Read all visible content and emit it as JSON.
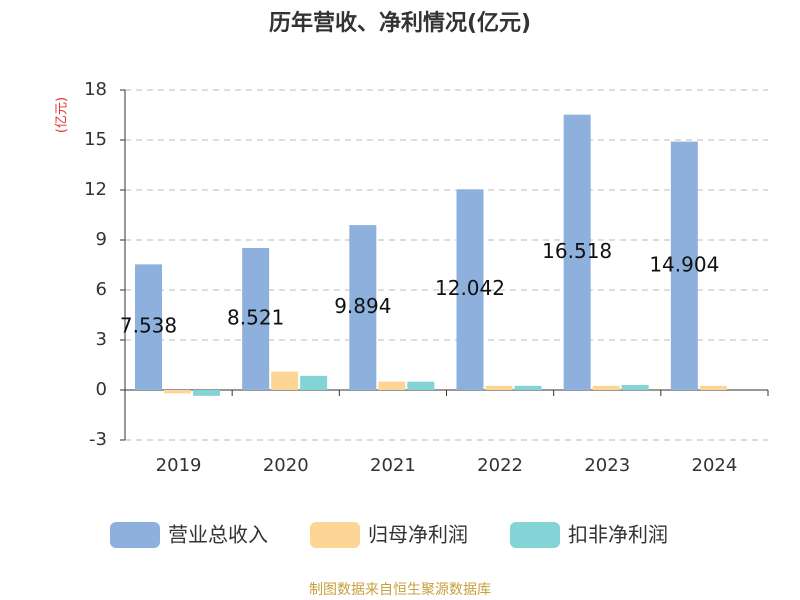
{
  "chart_data": {
    "type": "bar",
    "title": "历年营收、净利情况(亿元)",
    "y_label": "(亿元)",
    "categories": [
      "2019",
      "2020",
      "2021",
      "2022",
      "2023",
      "2024"
    ],
    "series": [
      {
        "name": "营业总收入",
        "color": "#8eb0dc",
        "values": [
          7.538,
          8.521,
          9.894,
          12.042,
          16.518,
          14.904
        ]
      },
      {
        "name": "归母净利润",
        "color": "#fdd594",
        "values": [
          -0.2,
          1.1,
          0.5,
          0.25,
          0.25,
          0.25
        ]
      },
      {
        "name": "扣非净利润",
        "color": "#84d3d6",
        "values": [
          -0.35,
          0.85,
          0.5,
          0.25,
          0.3,
          null
        ]
      }
    ],
    "ylim": [
      -3,
      18
    ],
    "yticks": [
      -3,
      0,
      3,
      6,
      9,
      12,
      15,
      18
    ],
    "grid": true,
    "source": "制图数据来自恒生聚源数据库"
  }
}
